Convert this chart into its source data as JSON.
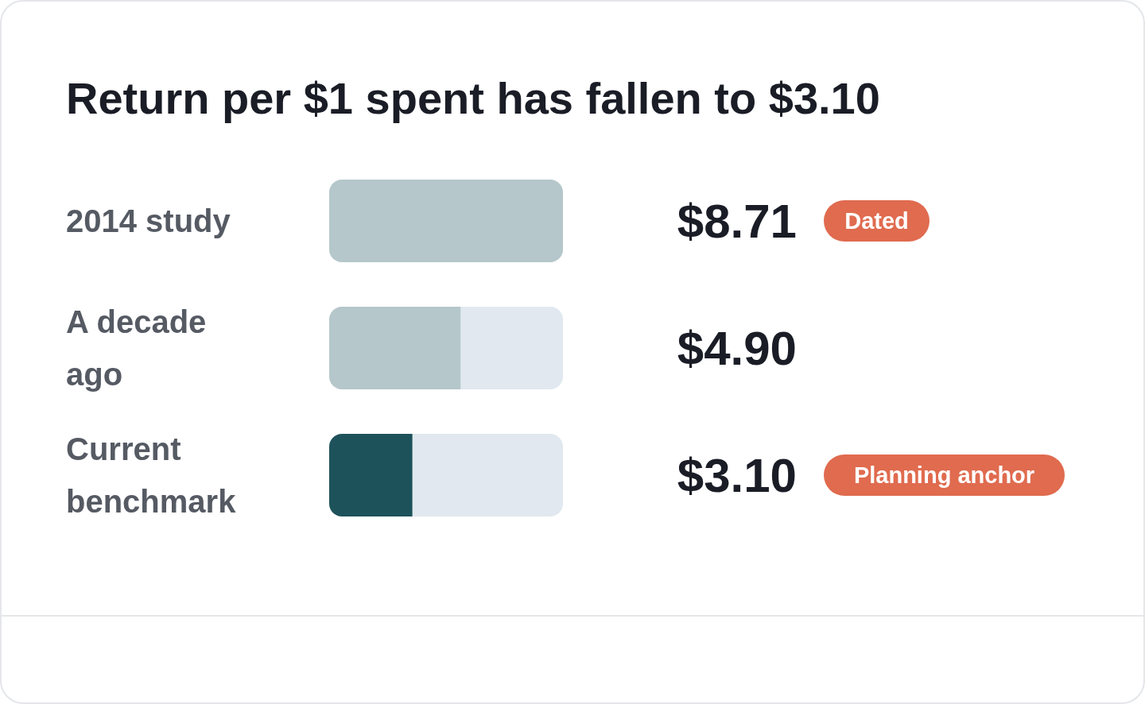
{
  "chart_data": {
    "type": "bar",
    "orientation": "horizontal",
    "title": "Return per $1 spent has fallen to $3.10",
    "categories": [
      "2014 study",
      "A decade ago",
      "Current benchmark"
    ],
    "values": [
      8.71,
      4.9,
      3.1
    ],
    "value_labels": [
      "$8.71",
      "$4.90",
      "$3.10"
    ],
    "colors": [
      "#b5c7cb",
      "#b5c7cb",
      "#1e525b"
    ],
    "annotations": [
      "Dated",
      "Planning anchor"
    ]
  }
}
